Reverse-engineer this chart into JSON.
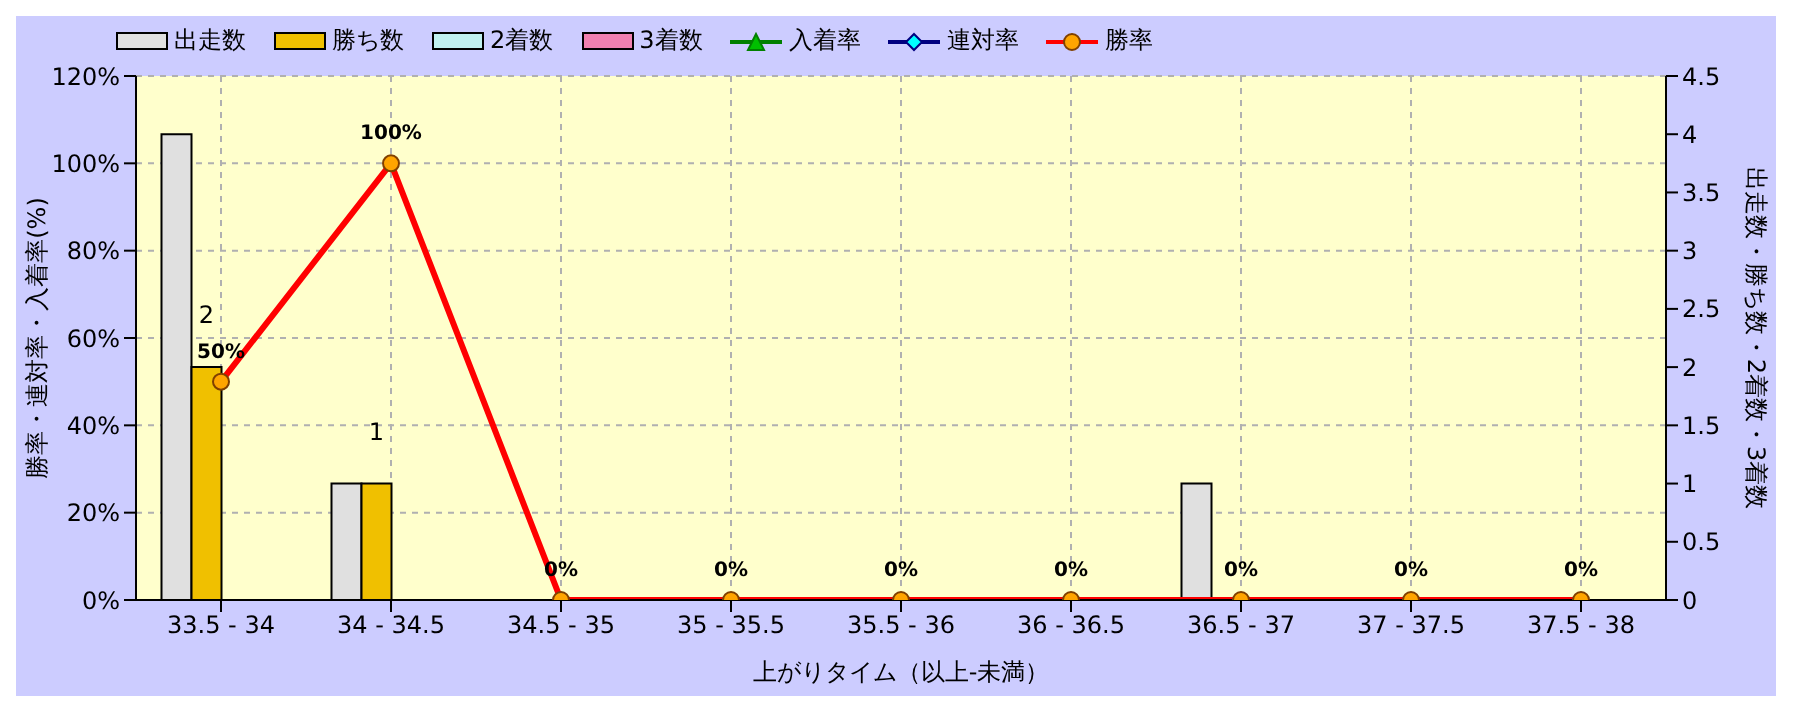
{
  "chart_data": {
    "type": "bar",
    "xlabel": "上がりタイム（以上-未満）",
    "ylabel": "勝率・連対率・入着率(%)",
    "y2label": "出走数・勝ち数・2着数・3着数",
    "categories": [
      "33.5 - 34",
      "34 - 34.5",
      "34.5 - 35",
      "35 - 35.5",
      "35.5 - 36",
      "36 - 36.5",
      "36.5 - 37",
      "37 - 37.5",
      "37.5 - 38"
    ],
    "series": [
      {
        "name": "出走数",
        "axis": "y2",
        "color": "#e0e0e0",
        "values": [
          4,
          1,
          0,
          0,
          0,
          0,
          1,
          0,
          0
        ]
      },
      {
        "name": "勝ち数",
        "axis": "y2",
        "color": "#f0c000",
        "values": [
          2,
          1,
          0,
          0,
          0,
          0,
          0,
          0,
          0
        ],
        "value_labels": [
          "2",
          "1",
          null,
          null,
          null,
          null,
          null,
          null,
          null
        ]
      },
      {
        "name": "2着数",
        "axis": "y2",
        "color": "#c0f0f0",
        "values": [
          0,
          0,
          0,
          0,
          0,
          0,
          0,
          0,
          0
        ]
      },
      {
        "name": "3着数",
        "axis": "y2",
        "color": "#f080b0",
        "values": [
          0,
          0,
          0,
          0,
          0,
          0,
          0,
          0,
          0
        ]
      },
      {
        "name": "入着率",
        "type": "line",
        "axis": "y",
        "color": "#008000",
        "marker": "triangle",
        "values": [
          null,
          null,
          null,
          null,
          null,
          null,
          null,
          null,
          null
        ]
      },
      {
        "name": "連対率",
        "type": "line",
        "axis": "y",
        "color": "#000080",
        "marker": "diamond",
        "values": [
          null,
          null,
          null,
          null,
          null,
          null,
          null,
          null,
          null
        ]
      },
      {
        "name": "勝率",
        "type": "line",
        "axis": "y",
        "color": "#ff0000",
        "marker": "circle",
        "values": [
          50,
          100,
          0,
          0,
          0,
          0,
          0,
          0,
          0
        ],
        "value_labels": [
          "50%",
          "100%",
          "0%",
          "0%",
          "0%",
          "0%",
          "0%",
          "0%",
          "0%"
        ]
      }
    ],
    "ylim": [
      0,
      120
    ],
    "yticks": [
      {
        "value": 0,
        "label": "0%"
      },
      {
        "value": 20,
        "label": "20%"
      },
      {
        "value": 40,
        "label": "40%"
      },
      {
        "value": 60,
        "label": "60%"
      },
      {
        "value": 80,
        "label": "80%"
      },
      {
        "value": 100,
        "label": "100%"
      },
      {
        "value": 120,
        "label": "120%"
      }
    ],
    "y2lim": [
      0,
      4.5
    ],
    "y2ticks": [
      0,
      0.5,
      1,
      1.5,
      2,
      2.5,
      3,
      3.5,
      4,
      4.5
    ],
    "grid": true,
    "legend": "top left"
  }
}
